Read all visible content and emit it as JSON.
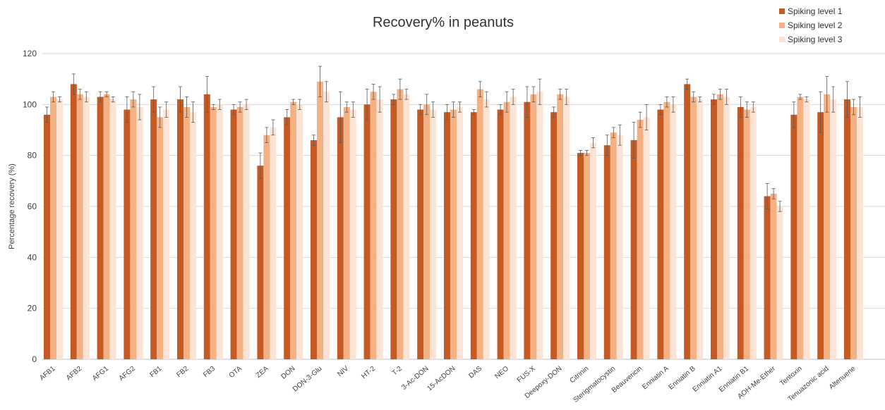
{
  "chart_data": {
    "type": "bar",
    "title": "Recovery% in peanuts",
    "xlabel": "",
    "ylabel": "Percentage recovery (%)",
    "ylim": [
      0,
      120
    ],
    "yticks": [
      0,
      20,
      40,
      60,
      80,
      100,
      120
    ],
    "grid": true,
    "legend_position": "top-right",
    "categories": [
      "AFB1",
      "AFB2",
      "AFG1",
      "AFG2",
      "FB1",
      "FB2",
      "FB3",
      "OTA",
      "ZEA",
      "DON",
      "DON-3-Glu",
      "NIV",
      "HT-2",
      "T-2",
      "3-Ac-DON",
      "15-AcDON",
      "DAS",
      "NEO",
      "FUS-X",
      "Deepoxy-DON",
      "Citrinin",
      "Sterigmatocystin",
      "Beauvericin",
      "Enniatin A",
      "Enniatin B",
      "Enniatin A1",
      "Enniatin B1",
      "AOH-Me-Ether",
      "Tentoxin",
      "Tenuazonic acid",
      "Altenuene"
    ],
    "series": [
      {
        "name": "Spiking level 1",
        "color": "#C55A23",
        "values": [
          96,
          108,
          103,
          98,
          102,
          102,
          104,
          98,
          76,
          95,
          86,
          95,
          100,
          102,
          98,
          97,
          97,
          98,
          101,
          97,
          81,
          84,
          86,
          98,
          108,
          102,
          99,
          64,
          96,
          97,
          102
        ],
        "errors": [
          3,
          4,
          2,
          5,
          5,
          5,
          7,
          2,
          5,
          3,
          2,
          10,
          6,
          2,
          2,
          3,
          1,
          2,
          6,
          2,
          1,
          4,
          7,
          2,
          2,
          2,
          4,
          5,
          5,
          8,
          7
        ]
      },
      {
        "name": "Spiking level 2",
        "color": "#F4B183",
        "values": [
          103,
          104,
          104,
          102,
          95,
          99,
          99,
          99,
          88,
          101,
          109,
          99,
          105,
          106,
          100,
          98,
          106,
          101,
          104,
          104,
          81,
          89,
          94,
          101,
          103,
          104,
          98,
          65,
          103,
          104,
          99
        ],
        "errors": [
          2,
          2,
          1,
          3,
          4,
          4,
          1,
          2,
          3,
          1,
          6,
          2,
          3,
          4,
          4,
          3,
          3,
          4,
          3,
          2,
          1,
          2,
          3,
          2,
          2,
          2,
          3,
          2,
          1,
          7,
          3
        ]
      },
      {
        "name": "Spiking level 3",
        "color": "#FBE4D5",
        "values": [
          102,
          103,
          102,
          99,
          98,
          97,
          100,
          100,
          91,
          100,
          105,
          98,
          102,
          104,
          98,
          99,
          102,
          103,
          105,
          103,
          85,
          88,
          95,
          100,
          102,
          103,
          99,
          60,
          102,
          102,
          99
        ],
        "errors": [
          1,
          2,
          1,
          5,
          3,
          4,
          2,
          2,
          3,
          2,
          4,
          3,
          5,
          2,
          3,
          2,
          3,
          3,
          5,
          3,
          2,
          4,
          5,
          3,
          1,
          3,
          2,
          2,
          1,
          5,
          4
        ]
      }
    ]
  }
}
